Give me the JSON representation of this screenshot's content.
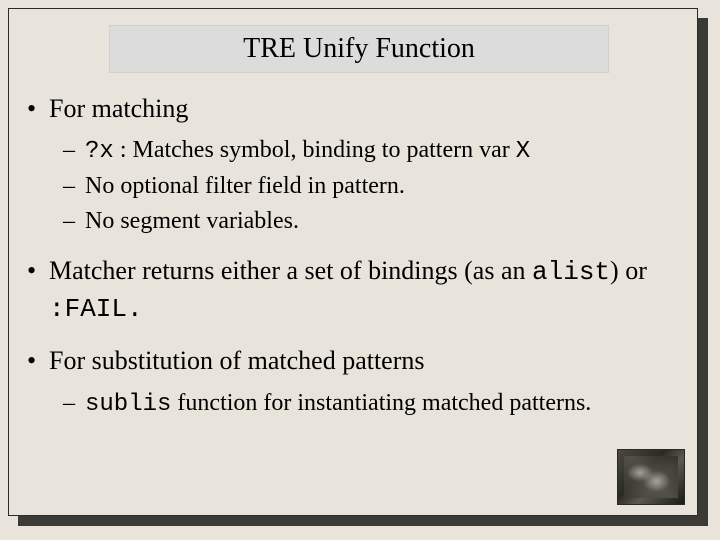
{
  "slide": {
    "title": "TRE Unify Function",
    "background_color": "#e8e4db",
    "shadow_color": "#3a3a36",
    "title_box_bg": "#dcdcdc",
    "title_fontsize": 28,
    "body_fontsize_l1": 26,
    "body_fontsize_l2": 24,
    "text_color": "#000000",
    "bullets": [
      {
        "text": "For matching",
        "children": [
          {
            "pre_mono": "?x",
            "mid": " : Matches symbol, binding to pattern var ",
            "post_mono": "X"
          },
          {
            "mid": "No optional filter field in pattern."
          },
          {
            "mid": "No segment variables."
          }
        ]
      },
      {
        "text_pre": "Matcher returns either a set of bindings (as an ",
        "mono1": "alist",
        "text_mid": ") or ",
        "mono2": ":FAIL.",
        "children": []
      },
      {
        "text": "For substitution of matched patterns",
        "children": [
          {
            "pre_mono": "sublis",
            "mid": " function for instantiating matched patterns."
          }
        ]
      }
    ]
  }
}
